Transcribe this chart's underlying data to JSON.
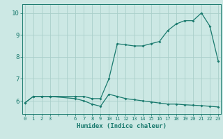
{
  "xlabel": "Humidex (Indice chaleur)",
  "bg_color": "#cce8e4",
  "line_color": "#1a7a6e",
  "grid_color": "#aacfca",
  "xtick_vals": [
    0,
    1,
    2,
    3,
    6,
    7,
    8,
    9,
    10,
    11,
    12,
    13,
    14,
    15,
    16,
    17,
    18,
    19,
    20,
    21,
    22,
    23
  ],
  "xtick_labels": [
    "0",
    "1",
    "2",
    "3",
    "6",
    "7",
    "8",
    "9",
    "10",
    "11",
    "12",
    "13",
    "14",
    "15",
    "16",
    "17",
    "18",
    "19",
    "20",
    "21",
    "22",
    "23"
  ],
  "yticks": [
    6,
    7,
    8,
    9,
    10
  ],
  "ylim": [
    5.4,
    10.4
  ],
  "xlim": [
    -0.3,
    23.3
  ],
  "upper_x": [
    0,
    1,
    2,
    3,
    6,
    7,
    8,
    9,
    10,
    11,
    12,
    13,
    14,
    15,
    16,
    17,
    18,
    19,
    20,
    21,
    22,
    23
  ],
  "upper_y": [
    5.9,
    6.2,
    6.2,
    6.2,
    6.2,
    6.2,
    6.1,
    6.1,
    7.0,
    8.6,
    8.55,
    8.5,
    8.5,
    8.6,
    8.7,
    9.2,
    9.5,
    9.65,
    9.65,
    10.0,
    9.4,
    7.8
  ],
  "lower_x": [
    0,
    1,
    2,
    3,
    6,
    7,
    8,
    9,
    10,
    11,
    12,
    13,
    14,
    15,
    16,
    17,
    18,
    19,
    20,
    21,
    22,
    23
  ],
  "lower_y": [
    5.9,
    6.2,
    6.2,
    6.2,
    6.1,
    6.0,
    5.85,
    5.75,
    6.3,
    6.2,
    6.1,
    6.05,
    6.0,
    5.95,
    5.9,
    5.85,
    5.85,
    5.82,
    5.8,
    5.78,
    5.75,
    5.72
  ]
}
